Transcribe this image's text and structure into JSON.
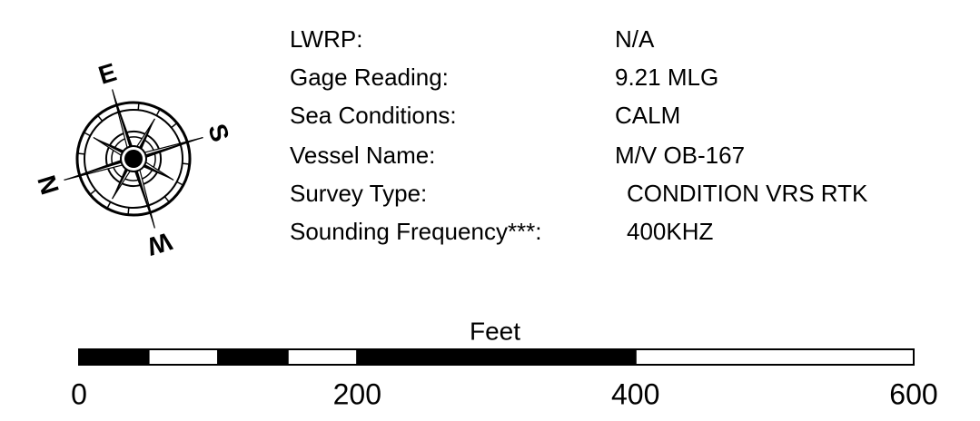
{
  "info": {
    "rows": [
      {
        "label": "LWRP:",
        "value": "N/A"
      },
      {
        "label": "Gage Reading:",
        "value": "9.21 MLG"
      },
      {
        "label": "Sea Conditions:",
        "value": "CALM"
      },
      {
        "label": "Vessel Name:",
        "value": "M/V OB-167"
      },
      {
        "label": "Survey Type:",
        "value": "CONDITION VRS RTK"
      },
      {
        "label": "Sounding Frequency***:",
        "value": "400KHZ"
      }
    ]
  },
  "compass": {
    "labels": [
      "E",
      "S",
      "W",
      "N"
    ]
  },
  "scale_bar": {
    "title": "Feet",
    "ticks": [
      0,
      200,
      400,
      600
    ]
  }
}
